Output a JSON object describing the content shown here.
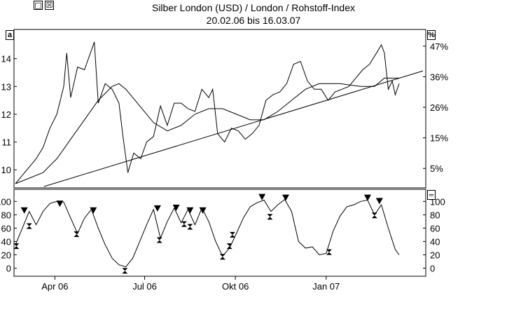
{
  "window": {
    "restore_glyph": "□",
    "close_glyph": "☒"
  },
  "header": {
    "title": "Silber London (USD) / London / Rohstoff-Index",
    "subtitle": "20.02.06 bis 16.03.07"
  },
  "price_panel": {
    "left_marker": "a",
    "right_marker": "%"
  },
  "indicator_panel": {
    "right_marker": "═"
  },
  "colors": {
    "line": "#000000",
    "background": "#ffffff"
  },
  "chart_data": [
    {
      "type": "line",
      "title": "Silber London (USD) / London / Rohstoff-Index",
      "subtitle": "20.02.06 bis 16.03.07",
      "x_tick_labels": [
        "Apr 06",
        "Jul 06",
        "Okt 06",
        "Jan 07"
      ],
      "x_ticks_dates": [
        "2006-04-01",
        "2006-07-01",
        "2006-10-01",
        "2007-01-01"
      ],
      "x_range": [
        "2006-02-20",
        "2007-03-16"
      ],
      "y_left_ticks": [
        10,
        11,
        12,
        13,
        14
      ],
      "y_right_ticks": [
        "5%",
        "15%",
        "26%",
        "36%",
        "47%"
      ],
      "y_range": [
        9.4,
        14.9
      ],
      "grid": false,
      "series": [
        {
          "kind": "price",
          "points": [
            [
              "2006-02-20",
              9.5
            ],
            [
              "2006-02-27",
              9.8
            ],
            [
              "2006-03-06",
              10.1
            ],
            [
              "2006-03-13",
              10.4
            ],
            [
              "2006-03-20",
              10.8
            ],
            [
              "2006-03-27",
              11.5
            ],
            [
              "2006-04-03",
              12.0
            ],
            [
              "2006-04-10",
              13.0
            ],
            [
              "2006-04-13",
              14.2
            ],
            [
              "2006-04-17",
              12.6
            ],
            [
              "2006-04-24",
              13.7
            ],
            [
              "2006-05-01",
              13.6
            ],
            [
              "2006-05-08",
              14.3
            ],
            [
              "2006-05-11",
              14.6
            ],
            [
              "2006-05-15",
              12.4
            ],
            [
              "2006-05-22",
              13.1
            ],
            [
              "2006-05-29",
              12.9
            ],
            [
              "2006-06-05",
              12.4
            ],
            [
              "2006-06-09",
              11.2
            ],
            [
              "2006-06-14",
              9.9
            ],
            [
              "2006-06-20",
              10.6
            ],
            [
              "2006-06-27",
              10.4
            ],
            [
              "2006-07-03",
              11.0
            ],
            [
              "2006-07-10",
              11.2
            ],
            [
              "2006-07-17",
              12.3
            ],
            [
              "2006-07-24",
              11.6
            ],
            [
              "2006-07-31",
              12.4
            ],
            [
              "2006-08-07",
              12.4
            ],
            [
              "2006-08-14",
              12.2
            ],
            [
              "2006-08-21",
              12.1
            ],
            [
              "2006-08-28",
              12.9
            ],
            [
              "2006-09-04",
              12.6
            ],
            [
              "2006-09-08",
              12.9
            ],
            [
              "2006-09-13",
              11.3
            ],
            [
              "2006-09-20",
              11.0
            ],
            [
              "2006-09-27",
              11.5
            ],
            [
              "2006-10-04",
              11.4
            ],
            [
              "2006-10-11",
              11.1
            ],
            [
              "2006-10-18",
              11.3
            ],
            [
              "2006-10-25",
              11.6
            ],
            [
              "2006-11-01",
              12.5
            ],
            [
              "2006-11-08",
              12.7
            ],
            [
              "2006-11-15",
              12.8
            ],
            [
              "2006-11-22",
              13.1
            ],
            [
              "2006-11-29",
              13.8
            ],
            [
              "2006-12-06",
              13.9
            ],
            [
              "2006-12-13",
              13.2
            ],
            [
              "2006-12-20",
              12.9
            ],
            [
              "2006-12-27",
              12.9
            ],
            [
              "2007-01-03",
              12.5
            ],
            [
              "2007-01-10",
              12.8
            ],
            [
              "2007-01-17",
              12.9
            ],
            [
              "2007-01-24",
              13.0
            ],
            [
              "2007-01-31",
              13.3
            ],
            [
              "2007-02-07",
              13.6
            ],
            [
              "2007-02-14",
              13.8
            ],
            [
              "2007-02-21",
              14.2
            ],
            [
              "2007-02-26",
              14.5
            ],
            [
              "2007-03-01",
              14.2
            ],
            [
              "2007-03-05",
              12.9
            ],
            [
              "2007-03-09",
              13.2
            ],
            [
              "2007-03-12",
              12.7
            ],
            [
              "2007-03-16",
              13.1
            ]
          ]
        },
        {
          "kind": "moving-average",
          "points": [
            [
              "2006-02-20",
              9.5
            ],
            [
              "2006-03-06",
              9.7
            ],
            [
              "2006-03-20",
              9.9
            ],
            [
              "2006-04-03",
              10.4
            ],
            [
              "2006-04-17",
              11.1
            ],
            [
              "2006-05-01",
              11.8
            ],
            [
              "2006-05-15",
              12.5
            ],
            [
              "2006-05-29",
              13.0
            ],
            [
              "2006-06-05",
              13.1
            ],
            [
              "2006-06-12",
              12.9
            ],
            [
              "2006-06-26",
              12.3
            ],
            [
              "2006-07-10",
              11.7
            ],
            [
              "2006-07-24",
              11.4
            ],
            [
              "2006-08-07",
              11.6
            ],
            [
              "2006-08-21",
              12.0
            ],
            [
              "2006-09-04",
              12.2
            ],
            [
              "2006-09-18",
              12.2
            ],
            [
              "2006-10-02",
              12.0
            ],
            [
              "2006-10-16",
              11.8
            ],
            [
              "2006-10-30",
              11.8
            ],
            [
              "2006-11-13",
              12.1
            ],
            [
              "2006-11-27",
              12.5
            ],
            [
              "2006-12-11",
              12.9
            ],
            [
              "2006-12-25",
              13.1
            ],
            [
              "2007-01-15",
              13.1
            ],
            [
              "2007-02-05",
              13.0
            ],
            [
              "2007-02-19",
              13.0
            ],
            [
              "2007-03-01",
              13.3
            ],
            [
              "2007-03-16",
              13.3
            ]
          ]
        },
        {
          "kind": "trendline",
          "points": [
            [
              "2006-03-21",
              9.4
            ],
            [
              "2007-03-16",
              13.3
            ]
          ]
        }
      ]
    },
    {
      "type": "line",
      "x_tick_labels": [
        "Apr 06",
        "Jul 06",
        "Okt 06",
        "Jan 07"
      ],
      "y_left_ticks": [
        0,
        20,
        40,
        60,
        80,
        100
      ],
      "y_right_ticks": [
        0,
        20,
        40,
        60,
        80,
        100
      ],
      "y_range": [
        -10,
        114
      ],
      "grid": false,
      "series": [
        {
          "kind": "oscillator",
          "points": [
            [
              "2006-02-20",
              35
            ],
            [
              "2006-02-27",
              60
            ],
            [
              "2006-03-06",
              85
            ],
            [
              "2006-03-13",
              65
            ],
            [
              "2006-03-20",
              85
            ],
            [
              "2006-03-27",
              97
            ],
            [
              "2006-04-03",
              100
            ],
            [
              "2006-04-10",
              99
            ],
            [
              "2006-04-17",
              75
            ],
            [
              "2006-04-24",
              52
            ],
            [
              "2006-05-01",
              75
            ],
            [
              "2006-05-08",
              88
            ],
            [
              "2006-05-15",
              60
            ],
            [
              "2006-05-22",
              35
            ],
            [
              "2006-05-29",
              15
            ],
            [
              "2006-06-05",
              5
            ],
            [
              "2006-06-12",
              2
            ],
            [
              "2006-06-19",
              15
            ],
            [
              "2006-06-26",
              40
            ],
            [
              "2006-07-03",
              65
            ],
            [
              "2006-07-10",
              88
            ],
            [
              "2006-07-17",
              45
            ],
            [
              "2006-07-24",
              70
            ],
            [
              "2006-07-31",
              90
            ],
            [
              "2006-08-07",
              68
            ],
            [
              "2006-08-14",
              88
            ],
            [
              "2006-08-21",
              65
            ],
            [
              "2006-08-28",
              90
            ],
            [
              "2006-09-04",
              70
            ],
            [
              "2006-09-11",
              40
            ],
            [
              "2006-09-18",
              18
            ],
            [
              "2006-09-25",
              30
            ],
            [
              "2006-10-02",
              52
            ],
            [
              "2006-10-09",
              75
            ],
            [
              "2006-10-16",
              92
            ],
            [
              "2006-10-23",
              98
            ],
            [
              "2006-10-30",
              102
            ],
            [
              "2006-11-06",
              85
            ],
            [
              "2006-11-13",
              95
            ],
            [
              "2006-11-20",
              103
            ],
            [
              "2006-11-27",
              85
            ],
            [
              "2006-12-04",
              40
            ],
            [
              "2006-12-11",
              30
            ],
            [
              "2006-12-18",
              32
            ],
            [
              "2006-12-25",
              20
            ],
            [
              "2007-01-01",
              22
            ],
            [
              "2007-01-08",
              55
            ],
            [
              "2007-01-15",
              78
            ],
            [
              "2007-01-22",
              92
            ],
            [
              "2007-01-29",
              95
            ],
            [
              "2007-02-05",
              100
            ],
            [
              "2007-02-12",
              102
            ],
            [
              "2007-02-19",
              80
            ],
            [
              "2007-02-26",
              95
            ],
            [
              "2007-03-05",
              60
            ],
            [
              "2007-03-12",
              28
            ],
            [
              "2007-03-16",
              20
            ]
          ],
          "peak_markers": [
            [
              "2006-03-01",
              87
            ],
            [
              "2006-04-06",
              97
            ],
            [
              "2006-05-10",
              87
            ],
            [
              "2006-07-14",
              90
            ],
            [
              "2006-08-02",
              91
            ],
            [
              "2006-08-16",
              87
            ],
            [
              "2006-08-29",
              87
            ],
            [
              "2006-10-28",
              107
            ],
            [
              "2006-11-21",
              106
            ],
            [
              "2007-02-12",
              106
            ],
            [
              "2007-02-24",
              101
            ]
          ],
          "trough_markers": [
            [
              "2006-02-21",
              33
            ],
            [
              "2006-03-06",
              63
            ],
            [
              "2006-04-23",
              51
            ],
            [
              "2006-06-11",
              -4
            ],
            [
              "2006-07-16",
              42
            ],
            [
              "2006-08-10",
              66
            ],
            [
              "2006-08-16",
              62
            ],
            [
              "2006-09-18",
              17
            ],
            [
              "2006-09-25",
              33
            ],
            [
              "2006-09-28",
              50
            ],
            [
              "2006-11-05",
              77
            ],
            [
              "2007-01-04",
              24
            ],
            [
              "2007-02-19",
              79
            ]
          ]
        }
      ]
    }
  ]
}
